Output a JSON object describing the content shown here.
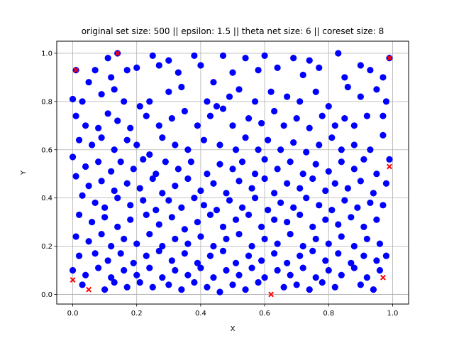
{
  "chart_data": {
    "type": "scatter",
    "title": "original set size: 500 || epsilon: 1.5 || theta net size: 6 || coreset size: 8",
    "xlabel": "X",
    "ylabel": "Y",
    "xlim": [
      -0.05,
      1.05
    ],
    "ylim": [
      -0.04,
      1.05
    ],
    "xticks": [
      "0.0",
      "0.2",
      "0.4",
      "0.6",
      "0.8",
      "1.0"
    ],
    "yticks": [
      "0.0",
      "0.2",
      "0.4",
      "0.6",
      "0.8",
      "1.0"
    ],
    "xtick_values": [
      0,
      0.2,
      0.4,
      0.6,
      0.8,
      1.0
    ],
    "ytick_values": [
      0,
      0.2,
      0.4,
      0.6,
      0.8,
      1.0
    ],
    "grid": true,
    "colors": {
      "points": "#0000ff",
      "coreset": "#ff0000",
      "grid": "#b0b0b0"
    },
    "series": [
      {
        "marker": "circle",
        "points": [
          [
            0.01,
            0.93
          ],
          [
            0.11,
            0.98
          ],
          [
            0.14,
            1.0
          ],
          [
            0.25,
            0.99
          ],
          [
            0.3,
            0.97
          ],
          [
            0.38,
            0.99
          ],
          [
            0.47,
            0.99
          ],
          [
            0.54,
            0.98
          ],
          [
            0.6,
            0.99
          ],
          [
            0.69,
            0.98
          ],
          [
            0.74,
            0.97
          ],
          [
            0.83,
            1.0
          ],
          [
            0.9,
            0.95
          ],
          [
            0.99,
            0.98
          ],
          [
            0.05,
            0.88
          ],
          [
            0.07,
            0.93
          ],
          [
            0.12,
            0.9
          ],
          [
            0.17,
            0.93
          ],
          [
            0.2,
            0.94
          ],
          [
            0.27,
            0.95
          ],
          [
            0.33,
            0.92
          ],
          [
            0.4,
            0.95
          ],
          [
            0.44,
            0.88
          ],
          [
            0.5,
            0.92
          ],
          [
            0.58,
            0.93
          ],
          [
            0.64,
            0.94
          ],
          [
            0.72,
            0.91
          ],
          [
            0.77,
            0.94
          ],
          [
            0.85,
            0.9
          ],
          [
            0.93,
            0.93
          ],
          [
            0.97,
            0.9
          ],
          [
            0.0,
            0.81
          ],
          [
            0.03,
            0.8
          ],
          [
            0.09,
            0.83
          ],
          [
            0.13,
            0.85
          ],
          [
            0.16,
            0.8
          ],
          [
            0.21,
            0.78
          ],
          [
            0.24,
            0.8
          ],
          [
            0.3,
            0.84
          ],
          [
            0.34,
            0.86
          ],
          [
            0.42,
            0.8
          ],
          [
            0.45,
            0.78
          ],
          [
            0.49,
            0.82
          ],
          [
            0.52,
            0.85
          ],
          [
            0.57,
            0.8
          ],
          [
            0.62,
            0.84
          ],
          [
            0.67,
            0.82
          ],
          [
            0.71,
            0.8
          ],
          [
            0.76,
            0.84
          ],
          [
            0.8,
            0.78
          ],
          [
            0.86,
            0.86
          ],
          [
            0.9,
            0.82
          ],
          [
            0.95,
            0.85
          ],
          [
            0.98,
            0.8
          ],
          [
            0.01,
            0.74
          ],
          [
            0.04,
            0.7
          ],
          [
            0.08,
            0.69
          ],
          [
            0.11,
            0.75
          ],
          [
            0.14,
            0.72
          ],
          [
            0.18,
            0.69
          ],
          [
            0.23,
            0.74
          ],
          [
            0.27,
            0.7
          ],
          [
            0.31,
            0.73
          ],
          [
            0.35,
            0.76
          ],
          [
            0.39,
            0.7
          ],
          [
            0.43,
            0.74
          ],
          [
            0.47,
            0.77
          ],
          [
            0.5,
            0.7
          ],
          [
            0.55,
            0.73
          ],
          [
            0.59,
            0.71
          ],
          [
            0.63,
            0.76
          ],
          [
            0.66,
            0.7
          ],
          [
            0.7,
            0.73
          ],
          [
            0.74,
            0.69
          ],
          [
            0.78,
            0.74
          ],
          [
            0.82,
            0.7
          ],
          [
            0.85,
            0.73
          ],
          [
            0.88,
            0.7
          ],
          [
            0.92,
            0.74
          ],
          [
            0.97,
            0.74
          ],
          [
            0.02,
            0.64
          ],
          [
            0.06,
            0.62
          ],
          [
            0.09,
            0.65
          ],
          [
            0.13,
            0.6
          ],
          [
            0.17,
            0.64
          ],
          [
            0.2,
            0.62
          ],
          [
            0.24,
            0.58
          ],
          [
            0.28,
            0.65
          ],
          [
            0.32,
            0.62
          ],
          [
            0.36,
            0.6
          ],
          [
            0.41,
            0.64
          ],
          [
            0.46,
            0.62
          ],
          [
            0.51,
            0.6
          ],
          [
            0.54,
            0.65
          ],
          [
            0.58,
            0.6
          ],
          [
            0.61,
            0.64
          ],
          [
            0.65,
            0.6
          ],
          [
            0.69,
            0.63
          ],
          [
            0.73,
            0.59
          ],
          [
            0.77,
            0.62
          ],
          [
            0.81,
            0.65
          ],
          [
            0.84,
            0.6
          ],
          [
            0.88,
            0.62
          ],
          [
            0.93,
            0.6
          ],
          [
            0.97,
            0.66
          ],
          [
            0.0,
            0.57
          ],
          [
            0.04,
            0.53
          ],
          [
            0.08,
            0.55
          ],
          [
            0.12,
            0.51
          ],
          [
            0.15,
            0.55
          ],
          [
            0.19,
            0.52
          ],
          [
            0.22,
            0.56
          ],
          [
            0.26,
            0.5
          ],
          [
            0.29,
            0.55
          ],
          [
            0.33,
            0.52
          ],
          [
            0.37,
            0.55
          ],
          [
            0.42,
            0.5
          ],
          [
            0.46,
            0.54
          ],
          [
            0.5,
            0.52
          ],
          [
            0.53,
            0.55
          ],
          [
            0.57,
            0.5
          ],
          [
            0.6,
            0.56
          ],
          [
            0.64,
            0.52
          ],
          [
            0.68,
            0.55
          ],
          [
            0.72,
            0.5
          ],
          [
            0.76,
            0.54
          ],
          [
            0.8,
            0.51
          ],
          [
            0.84,
            0.55
          ],
          [
            0.88,
            0.52
          ],
          [
            0.91,
            0.56
          ],
          [
            0.95,
            0.5
          ],
          [
            0.99,
            0.56
          ],
          [
            0.01,
            0.49
          ],
          [
            0.05,
            0.45
          ],
          [
            0.09,
            0.47
          ],
          [
            0.13,
            0.43
          ],
          [
            0.17,
            0.46
          ],
          [
            0.21,
            0.44
          ],
          [
            0.25,
            0.48
          ],
          [
            0.28,
            0.42
          ],
          [
            0.32,
            0.45
          ],
          [
            0.36,
            0.48
          ],
          [
            0.4,
            0.43
          ],
          [
            0.44,
            0.46
          ],
          [
            0.48,
            0.42
          ],
          [
            0.52,
            0.47
          ],
          [
            0.56,
            0.44
          ],
          [
            0.6,
            0.48
          ],
          [
            0.63,
            0.42
          ],
          [
            0.67,
            0.46
          ],
          [
            0.71,
            0.44
          ],
          [
            0.75,
            0.48
          ],
          [
            0.79,
            0.43
          ],
          [
            0.82,
            0.46
          ],
          [
            0.86,
            0.44
          ],
          [
            0.9,
            0.47
          ],
          [
            0.94,
            0.42
          ],
          [
            0.98,
            0.46
          ],
          [
            0.03,
            0.41
          ],
          [
            0.07,
            0.38
          ],
          [
            0.1,
            0.36
          ],
          [
            0.14,
            0.4
          ],
          [
            0.18,
            0.37
          ],
          [
            0.22,
            0.39
          ],
          [
            0.26,
            0.35
          ],
          [
            0.3,
            0.39
          ],
          [
            0.34,
            0.36
          ],
          [
            0.38,
            0.4
          ],
          [
            0.41,
            0.37
          ],
          [
            0.45,
            0.35
          ],
          [
            0.49,
            0.39
          ],
          [
            0.53,
            0.36
          ],
          [
            0.57,
            0.4
          ],
          [
            0.61,
            0.35
          ],
          [
            0.65,
            0.38
          ],
          [
            0.69,
            0.36
          ],
          [
            0.73,
            0.4
          ],
          [
            0.77,
            0.37
          ],
          [
            0.81,
            0.35
          ],
          [
            0.85,
            0.39
          ],
          [
            0.89,
            0.36
          ],
          [
            0.93,
            0.38
          ],
          [
            0.97,
            0.37
          ],
          [
            0.02,
            0.33
          ],
          [
            0.06,
            0.3
          ],
          [
            0.1,
            0.32
          ],
          [
            0.14,
            0.28
          ],
          [
            0.18,
            0.31
          ],
          [
            0.23,
            0.33
          ],
          [
            0.27,
            0.29
          ],
          [
            0.31,
            0.32
          ],
          [
            0.35,
            0.27
          ],
          [
            0.39,
            0.3
          ],
          [
            0.43,
            0.33
          ],
          [
            0.47,
            0.28
          ],
          [
            0.51,
            0.31
          ],
          [
            0.55,
            0.33
          ],
          [
            0.59,
            0.28
          ],
          [
            0.63,
            0.31
          ],
          [
            0.67,
            0.3
          ],
          [
            0.71,
            0.33
          ],
          [
            0.75,
            0.28
          ],
          [
            0.79,
            0.31
          ],
          [
            0.83,
            0.29
          ],
          [
            0.87,
            0.32
          ],
          [
            0.91,
            0.28
          ],
          [
            0.95,
            0.31
          ],
          [
            0.01,
            0.24
          ],
          [
            0.05,
            0.22
          ],
          [
            0.09,
            0.25
          ],
          [
            0.12,
            0.2
          ],
          [
            0.16,
            0.23
          ],
          [
            0.2,
            0.21
          ],
          [
            0.24,
            0.25
          ],
          [
            0.28,
            0.2
          ],
          [
            0.32,
            0.23
          ],
          [
            0.36,
            0.21
          ],
          [
            0.4,
            0.24
          ],
          [
            0.44,
            0.2
          ],
          [
            0.48,
            0.23
          ],
          [
            0.52,
            0.25
          ],
          [
            0.56,
            0.2
          ],
          [
            0.6,
            0.23
          ],
          [
            0.64,
            0.21
          ],
          [
            0.68,
            0.25
          ],
          [
            0.72,
            0.2
          ],
          [
            0.76,
            0.23
          ],
          [
            0.8,
            0.21
          ],
          [
            0.84,
            0.24
          ],
          [
            0.88,
            0.2
          ],
          [
            0.92,
            0.23
          ],
          [
            0.96,
            0.21
          ],
          [
            0.02,
            0.16
          ],
          [
            0.07,
            0.17
          ],
          [
            0.11,
            0.14
          ],
          [
            0.15,
            0.17
          ],
          [
            0.19,
            0.13
          ],
          [
            0.23,
            0.16
          ],
          [
            0.27,
            0.18
          ],
          [
            0.31,
            0.14
          ],
          [
            0.35,
            0.17
          ],
          [
            0.39,
            0.13
          ],
          [
            0.43,
            0.16
          ],
          [
            0.47,
            0.18
          ],
          [
            0.51,
            0.13
          ],
          [
            0.55,
            0.16
          ],
          [
            0.59,
            0.14
          ],
          [
            0.63,
            0.17
          ],
          [
            0.67,
            0.13
          ],
          [
            0.71,
            0.16
          ],
          [
            0.75,
            0.18
          ],
          [
            0.79,
            0.14
          ],
          [
            0.83,
            0.17
          ],
          [
            0.87,
            0.13
          ],
          [
            0.91,
            0.16
          ],
          [
            0.95,
            0.14
          ],
          [
            0.98,
            0.16
          ],
          [
            0.0,
            0.1
          ],
          [
            0.04,
            0.08
          ],
          [
            0.08,
            0.11
          ],
          [
            0.12,
            0.07
          ],
          [
            0.16,
            0.1
          ],
          [
            0.2,
            0.08
          ],
          [
            0.24,
            0.11
          ],
          [
            0.28,
            0.07
          ],
          [
            0.32,
            0.1
          ],
          [
            0.36,
            0.08
          ],
          [
            0.4,
            0.11
          ],
          [
            0.44,
            0.07
          ],
          [
            0.48,
            0.1
          ],
          [
            0.52,
            0.08
          ],
          [
            0.56,
            0.11
          ],
          [
            0.6,
            0.07
          ],
          [
            0.64,
            0.1
          ],
          [
            0.68,
            0.08
          ],
          [
            0.72,
            0.11
          ],
          [
            0.76,
            0.07
          ],
          [
            0.8,
            0.1
          ],
          [
            0.84,
            0.08
          ],
          [
            0.88,
            0.11
          ],
          [
            0.92,
            0.07
          ],
          [
            0.96,
            0.1
          ],
          [
            0.03,
            0.04
          ],
          [
            0.1,
            0.02
          ],
          [
            0.13,
            0.05
          ],
          [
            0.17,
            0.03
          ],
          [
            0.21,
            0.05
          ],
          [
            0.25,
            0.03
          ],
          [
            0.3,
            0.04
          ],
          [
            0.34,
            0.02
          ],
          [
            0.38,
            0.05
          ],
          [
            0.42,
            0.03
          ],
          [
            0.46,
            0.01
          ],
          [
            0.5,
            0.04
          ],
          [
            0.54,
            0.02
          ],
          [
            0.58,
            0.05
          ],
          [
            0.66,
            0.03
          ],
          [
            0.7,
            0.04
          ],
          [
            0.74,
            0.02
          ],
          [
            0.78,
            0.05
          ],
          [
            0.82,
            0.03
          ],
          [
            0.9,
            0.04
          ],
          [
            0.94,
            0.02
          ]
        ]
      },
      {
        "marker": "x",
        "points": [
          [
            0.01,
            0.93
          ],
          [
            0.14,
            1.0
          ],
          [
            0.99,
            0.98
          ],
          [
            0.99,
            0.53
          ],
          [
            0.0,
            0.06
          ],
          [
            0.05,
            0.02
          ],
          [
            0.62,
            0.0
          ],
          [
            0.97,
            0.07
          ]
        ]
      }
    ]
  }
}
